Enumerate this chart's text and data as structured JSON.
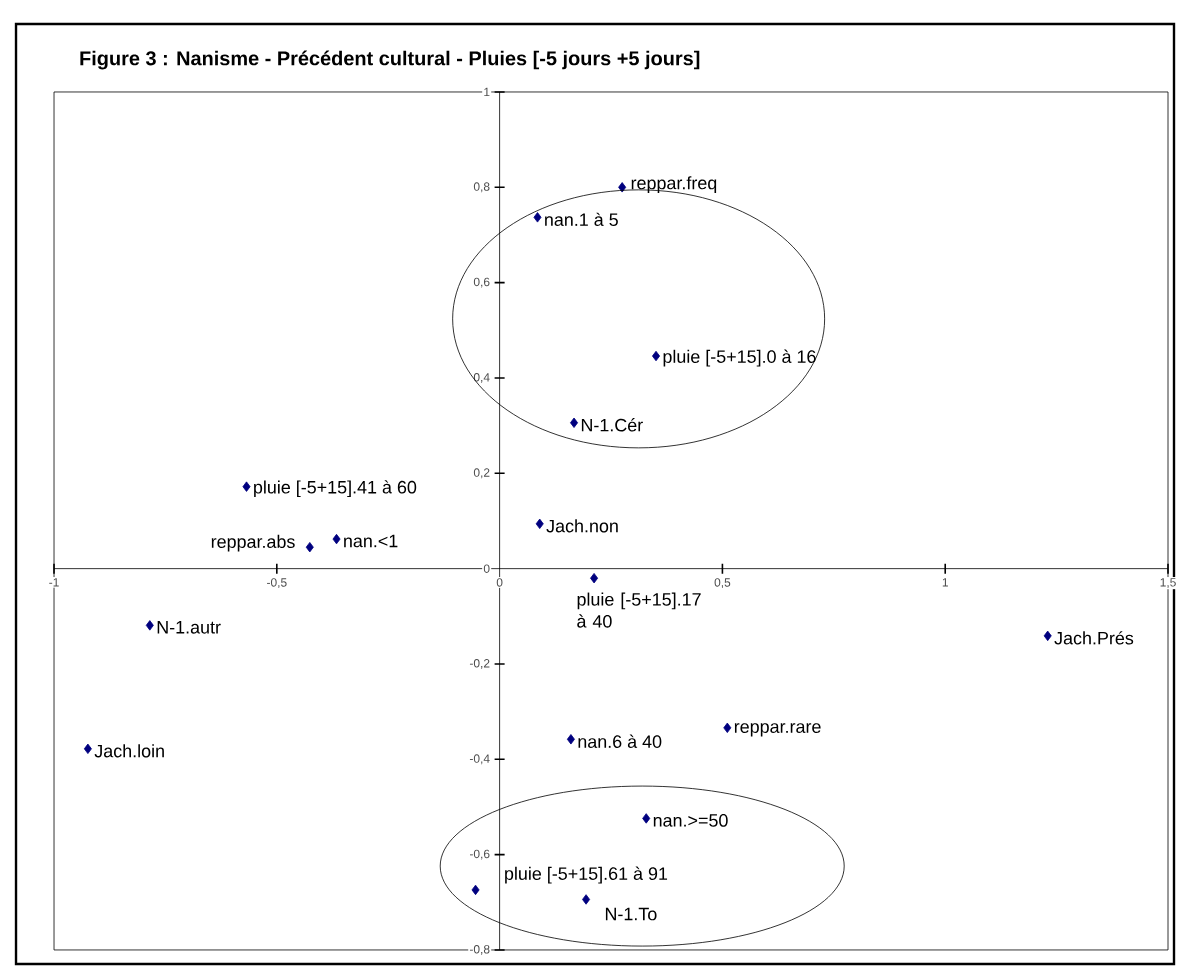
{
  "chart_data": {
    "type": "scatter",
    "title": "Figure 3 :     Nanisme - Précédent cultural - Pluies [-5 jours +5 jours]",
    "marker": "diamond",
    "grid": false,
    "xlim": [
      -1,
      1.5
    ],
    "ylim": [
      -0.8,
      1
    ],
    "xticks": [
      -1,
      {
        "value": -0.5,
        "label": "-0,5"
      },
      0,
      {
        "value": 0.5,
        "label": "0,5"
      },
      1,
      {
        "value": 1.5,
        "label": "1,5"
      }
    ],
    "yticks": [
      {
        "value": -0.8,
        "label": "-0,8"
      },
      {
        "value": -0.6,
        "label": "-0,6"
      },
      {
        "value": -0.4,
        "label": "-0,4"
      },
      {
        "value": -0.2,
        "label": "-0,2"
      },
      0,
      {
        "value": 0.2,
        "label": "0,2"
      },
      {
        "value": 0.4,
        "label": "0,4"
      },
      {
        "value": 0.6,
        "label": "0,6"
      },
      {
        "value": 0.8,
        "label": "0,8"
      },
      1
    ],
    "series": [
      {
        "color": "#00007f",
        "x": [
          0.275,
          0.085,
          0.351,
          0.167,
          0.09,
          0.212,
          -0.568,
          -0.426,
          -0.366,
          -0.785,
          -0.924,
          0.16,
          -0.054,
          0.194,
          0.329,
          0.511,
          1.23
        ],
        "values": [
          0.8,
          0.737,
          0.446,
          0.306,
          0.094,
          -0.02,
          0.172,
          0.045,
          0.062,
          -0.119,
          -0.378,
          -0.358,
          -0.674,
          -0.694,
          -0.524,
          -0.334,
          -0.141
        ],
        "value_labels": [
          "reppar.freq",
          "nan.1 à 5",
          "pluie [-5+15].0 à 16",
          "N-1.Cér",
          "Jach.non",
          "pluie [-5+15].17 à 40",
          "pluie [-5+15].41 à 60",
          "reppar.abs",
          "nan.<1",
          "N-1.autr",
          "Jach.loin",
          "nan.6 à 40",
          "pluie [-5+15].61 à 91",
          "N-1.To",
          "nan.>=50",
          "reppar.rare",
          "Jach.Prés"
        ]
      }
    ]
  }
}
